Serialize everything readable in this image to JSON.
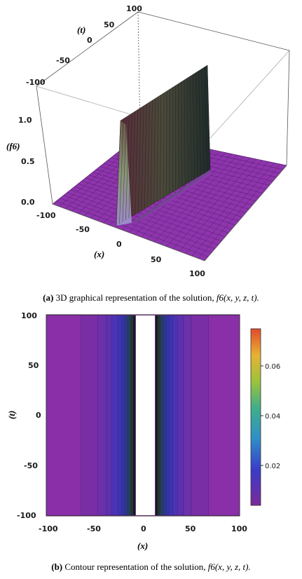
{
  "figure_a": {
    "caption_label": "(a)",
    "caption_text": "3D graphical representation of the solution,",
    "caption_math": "f6(x, y, z, t).",
    "axis_t_label": "(t)",
    "axis_f_label": "(f6)",
    "axis_x_label": "(x)"
  },
  "figure_b": {
    "caption_label": "(b)",
    "caption_text": "Contour representation of the solution,",
    "caption_math": "f6(x, y, z, t).",
    "axis_t_label": "(t)",
    "axis_x_label": "(x)"
  },
  "chart_data": [
    {
      "type": "surface",
      "xlabel": "(x)",
      "ylabel": "(t)",
      "zlabel": "(f6)",
      "x_ticks": [
        "-100",
        "-50",
        "0",
        "50",
        "100"
      ],
      "t_ticks": [
        "-100",
        "-50",
        "0",
        "50",
        "100"
      ],
      "z_ticks": [
        "0.0",
        "0.5",
        "1.0"
      ],
      "xlim": [
        -100,
        100
      ],
      "tlim": [
        -100,
        100
      ],
      "zlim": [
        0,
        1.3
      ],
      "surface_color": "#8a2fa8",
      "ridge_profile": {
        "x": [
          -100,
          -50,
          -20,
          -10,
          -5,
          0,
          5,
          10,
          20,
          50,
          100
        ],
        "z": [
          0.0,
          0.01,
          0.04,
          0.2,
          1.25,
          1.3,
          0.9,
          0.15,
          0.04,
          0.01,
          0.0
        ]
      }
    },
    {
      "type": "heatmap",
      "xlabel": "(x)",
      "ylabel": "(t)",
      "x_ticks": [
        "-100",
        "-50",
        "0",
        "50",
        "100"
      ],
      "y_ticks": [
        "-100",
        "-50",
        "0",
        "50",
        "100"
      ],
      "xlim": [
        -100,
        100
      ],
      "ylim": [
        -100,
        100
      ],
      "colorbar_ticks": [
        "0.02",
        "0.04",
        "0.06"
      ],
      "colorbar_range": [
        0.005,
        0.075
      ],
      "colorbar_colors": [
        "#7b2a9a",
        "#3a3cc8",
        "#2f8fc8",
        "#3fae8a",
        "#9cc23c",
        "#e8b234",
        "#e04a2a"
      ],
      "blank_region_x": [
        -8,
        13
      ]
    }
  ]
}
